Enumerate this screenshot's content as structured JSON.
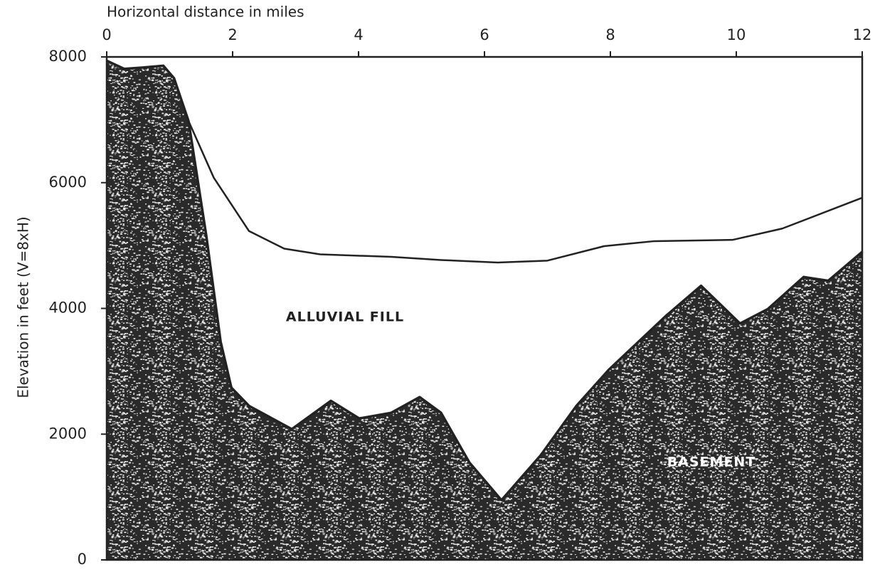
{
  "chart_data": {
    "type": "area",
    "xlabel": "Horizontal distance in miles",
    "ylabel": "Elevation in feet (V=8xH)",
    "xlim": [
      0,
      12
    ],
    "xticks": [
      0,
      2,
      4,
      6,
      8,
      10,
      12
    ],
    "ylim": [
      0,
      8000
    ],
    "yticks": [
      0,
      2000,
      4000,
      6000,
      8000
    ],
    "series": [
      {
        "name": "ALLUVIAL FILL",
        "color": "#222222",
        "filled": false,
        "x": [
          1.3,
          1.7,
          2.26,
          2.82,
          3.39,
          4.52,
          5.31,
          6.21,
          7.0,
          7.9,
          8.7,
          9.94,
          10.73,
          12
        ],
        "values": [
          6980,
          6080,
          5230,
          4950,
          4860,
          4820,
          4770,
          4730,
          4760,
          4990,
          5070,
          5090,
          5270,
          5760
        ]
      },
      {
        "name": "BASEMENT",
        "color": "#222222",
        "filled": true,
        "x": [
          0,
          0.28,
          0.56,
          0.9,
          1.07,
          1.3,
          1.58,
          1.81,
          1.98,
          2.26,
          2.94,
          3.56,
          4.01,
          4.52,
          4.97,
          5.31,
          5.76,
          6.27,
          6.89,
          7.46,
          7.97,
          8.87,
          9.44,
          10.06,
          10.5,
          11.07,
          11.46,
          12
        ],
        "values": [
          7940,
          7810,
          7830,
          7860,
          7660,
          6980,
          5170,
          3470,
          2740,
          2450,
          2080,
          2530,
          2250,
          2340,
          2590,
          2340,
          1550,
          950,
          1660,
          2450,
          3020,
          3870,
          4360,
          3760,
          3990,
          4500,
          4440,
          4900
        ]
      }
    ]
  }
}
